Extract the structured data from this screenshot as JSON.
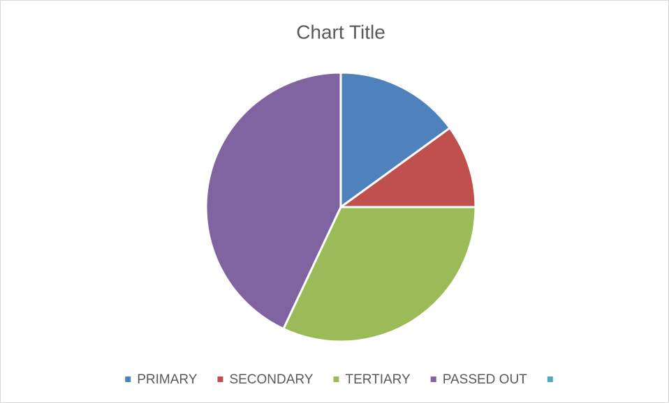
{
  "chart_data": {
    "type": "pie",
    "title": "Chart Title",
    "categories": [
      "PRIMARY",
      "SECONDARY",
      "TERTIARY",
      "PASSED OUT",
      null
    ],
    "values": [
      15,
      10,
      32,
      43,
      0
    ],
    "colors": [
      "#4f81bd",
      "#c0504d",
      "#9bbb59",
      "#8064a2",
      "#4bacc6"
    ],
    "legend": "bottom"
  }
}
